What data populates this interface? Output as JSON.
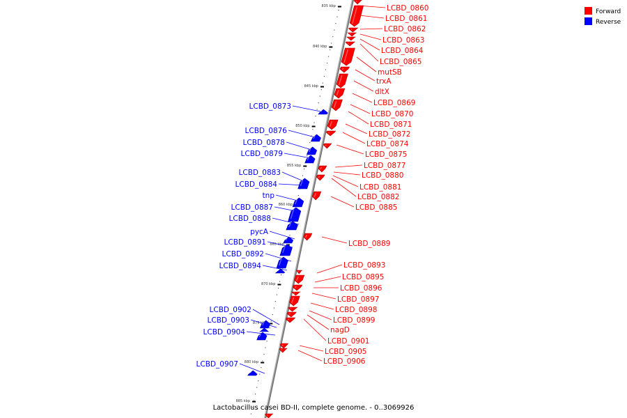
{
  "caption": "Lactobacillus casei BD-II, complete genome. - 0..3069926",
  "legend": [
    {
      "label": "Forward",
      "color": "#ff0000"
    },
    {
      "label": "Reverse",
      "color": "#0000ff"
    }
  ],
  "colors": {
    "forward": "#ff0000",
    "reverse": "#0000ff"
  },
  "ticks": [
    "835 kbp",
    "840 kbp",
    "845 kbp",
    "850 kbp",
    "855 kbp",
    "860 kbp",
    "865 kbp",
    "870 kbp",
    "875 kbp",
    "880 kbp",
    "885 kbp"
  ],
  "forward_genes": [
    "LCBD_0860",
    "LCBD_0861",
    "LCBD_0862",
    "LCBD_0863",
    "LCBD_0864",
    "LCBD_0865",
    "mutSB",
    "trxA",
    "dltX",
    "LCBD_0869",
    "LCBD_0870",
    "LCBD_0871",
    "LCBD_0872",
    "LCBD_0874",
    "LCBD_0875",
    "LCBD_0877",
    "LCBD_0880",
    "LCBD_0881",
    "LCBD_0882",
    "LCBD_0885",
    "LCBD_0889",
    "LCBD_0893",
    "LCBD_0895",
    "LCBD_0896",
    "LCBD_0897",
    "LCBD_0898",
    "LCBD_0899",
    "nagD",
    "LCBD_0901",
    "LCBD_0905",
    "LCBD_0906"
  ],
  "reverse_genes": [
    "LCBD_0873",
    "LCBD_0876",
    "LCBD_0878",
    "LCBD_0879",
    "LCBD_0883",
    "LCBD_0884",
    "tnp",
    "LCBD_0887",
    "LCBD_0888",
    "pycA",
    "LCBD_0891",
    "LCBD_0892",
    "LCBD_0894",
    "LCBD_0902",
    "LCBD_0903",
    "LCBD_0904",
    "LCBD_0907"
  ]
}
